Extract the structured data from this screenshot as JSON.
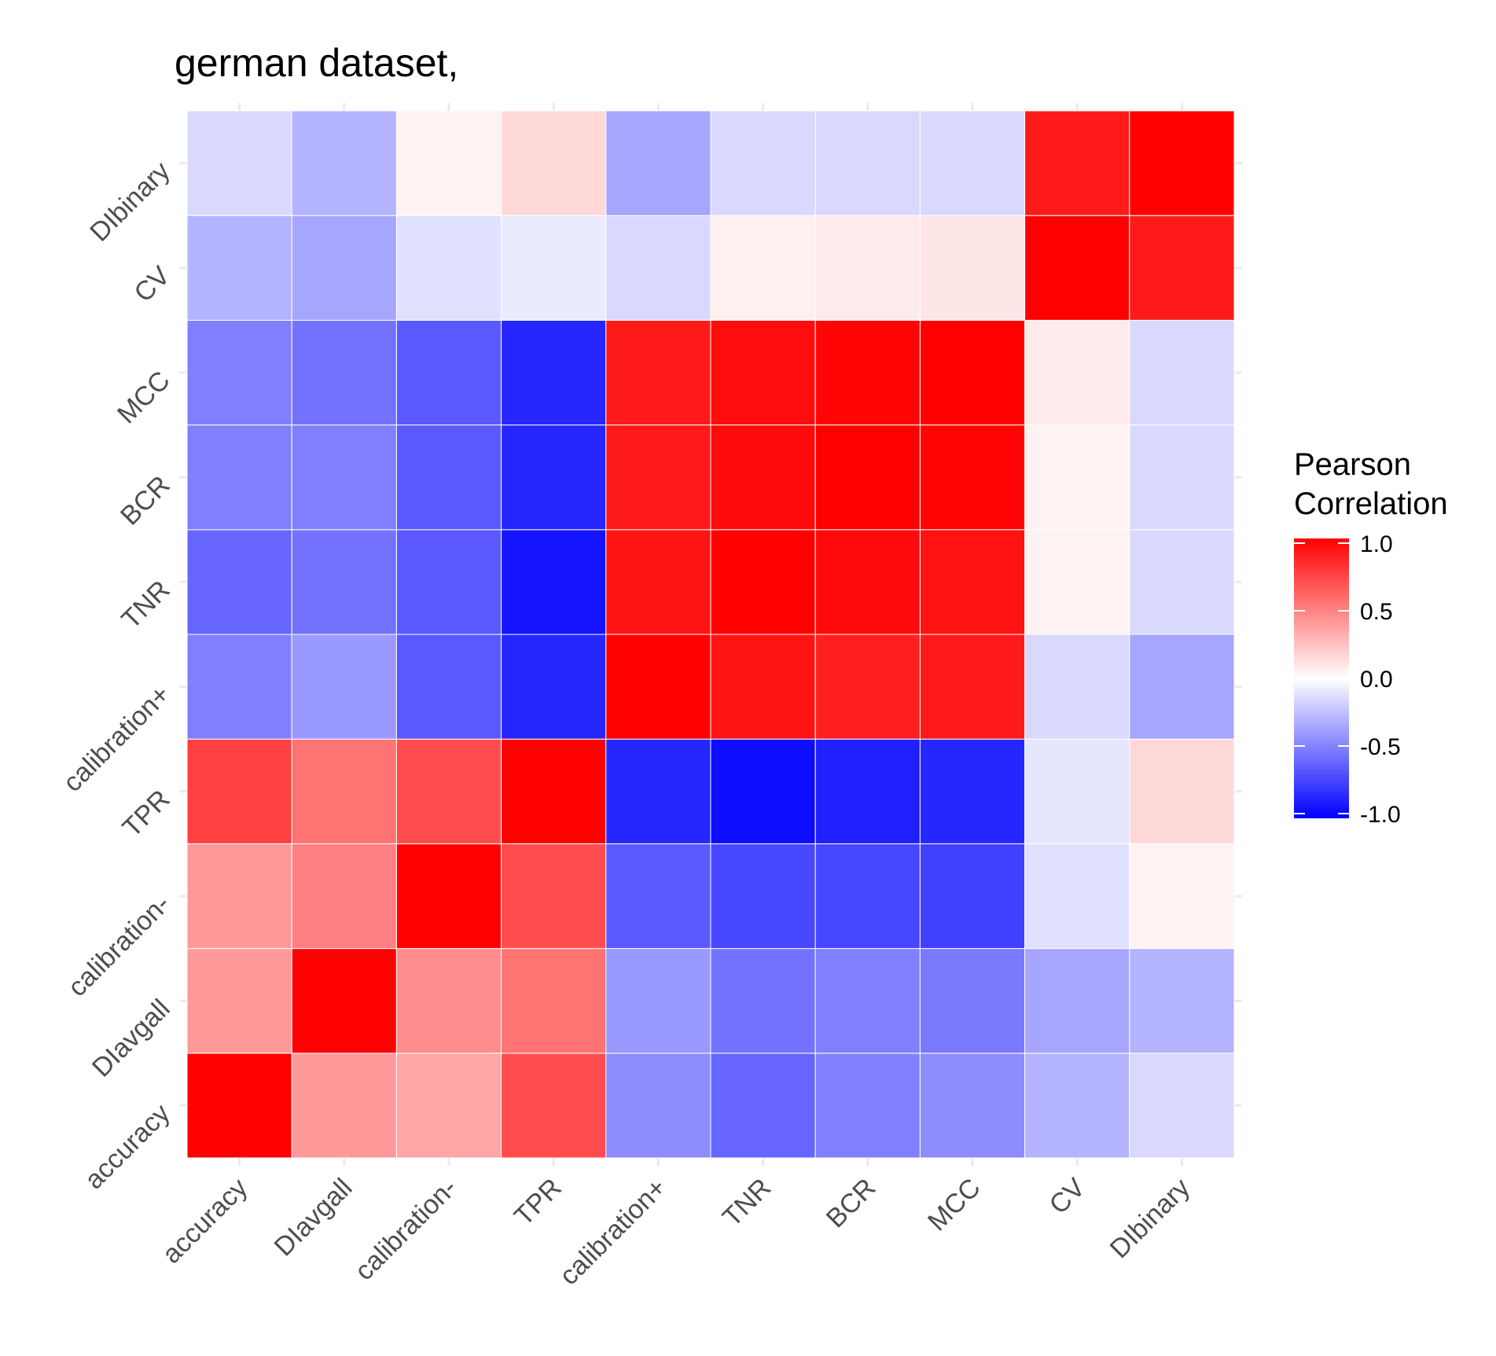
{
  "chart_data": {
    "type": "heatmap",
    "title": "german dataset,",
    "x_categories": [
      "accuracy",
      "DIavgall",
      "calibration-",
      "TPR",
      "calibration+",
      "TNR",
      "BCR",
      "MCC",
      "CV",
      "DIbinary"
    ],
    "y_categories": [
      "accuracy",
      "DIavgall",
      "calibration-",
      "TPR",
      "calibration+",
      "TNR",
      "BCR",
      "MCC",
      "CV",
      "DIbinary"
    ],
    "values": [
      [
        1.0,
        0.4,
        0.35,
        0.7,
        -0.45,
        -0.6,
        -0.5,
        -0.45,
        -0.3,
        -0.15
      ],
      [
        0.4,
        1.0,
        0.45,
        0.55,
        -0.4,
        -0.55,
        -0.5,
        -0.52,
        -0.35,
        -0.3
      ],
      [
        0.4,
        0.5,
        1.0,
        0.7,
        -0.65,
        -0.72,
        -0.72,
        -0.75,
        -0.12,
        0.05
      ],
      [
        0.75,
        0.55,
        0.7,
        1.0,
        -0.85,
        -0.95,
        -0.88,
        -0.85,
        -0.1,
        0.15
      ],
      [
        -0.5,
        -0.4,
        -0.65,
        -0.85,
        1.0,
        0.92,
        0.88,
        0.9,
        -0.15,
        -0.35
      ],
      [
        -0.6,
        -0.55,
        -0.65,
        -0.92,
        0.92,
        1.0,
        0.96,
        0.93,
        0.05,
        -0.15
      ],
      [
        -0.5,
        -0.5,
        -0.65,
        -0.85,
        0.9,
        0.96,
        1.0,
        0.98,
        0.05,
        -0.15
      ],
      [
        -0.5,
        -0.55,
        -0.65,
        -0.85,
        0.9,
        0.95,
        0.98,
        1.0,
        0.08,
        -0.15
      ],
      [
        -0.3,
        -0.35,
        -0.12,
        -0.08,
        -0.15,
        0.06,
        0.08,
        0.1,
        1.0,
        0.9
      ],
      [
        -0.15,
        -0.3,
        0.05,
        0.15,
        -0.35,
        -0.15,
        -0.15,
        -0.15,
        0.9,
        1.0
      ]
    ],
    "legend": {
      "title_lines": [
        "Pearson",
        "Correlation"
      ],
      "ticks": [
        1.0,
        0.5,
        0.0,
        -0.5,
        -1.0
      ],
      "tick_labels": [
        "1.0",
        "0.5",
        "0.0",
        "-0.5",
        "-1.0"
      ],
      "low_color": "#0000ff",
      "mid_color": "#ffffff",
      "high_color": "#ff0000",
      "placement": "right"
    },
    "range": [
      -1,
      1
    ],
    "grid": true
  }
}
